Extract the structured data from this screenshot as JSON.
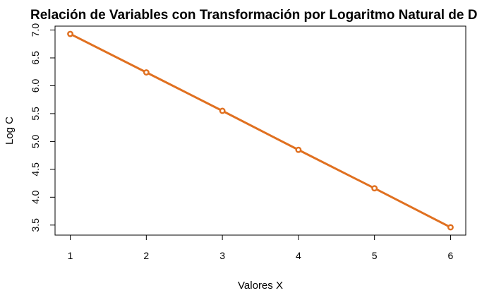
{
  "chart_data": {
    "type": "line",
    "title": "Relación de Variables con Transformación por Logaritmo Natural de D",
    "xlabel": "Valores X",
    "ylabel": "Log C",
    "x": [
      1,
      2,
      3,
      4,
      5,
      6
    ],
    "series": [
      {
        "values": [
          6.93,
          6.24,
          5.55,
          4.85,
          4.16,
          3.46
        ]
      }
    ],
    "x_ticks": [
      "1",
      "2",
      "3",
      "4",
      "5",
      "6"
    ],
    "y_ticks": [
      "3.5",
      "4.0",
      "4.5",
      "5.0",
      "5.5",
      "6.0",
      "6.5",
      "7.0"
    ],
    "xlim": [
      0.8,
      6.2
    ],
    "ylim": [
      3.32,
      7.07
    ],
    "grid": false,
    "line_color": "#E07020"
  }
}
